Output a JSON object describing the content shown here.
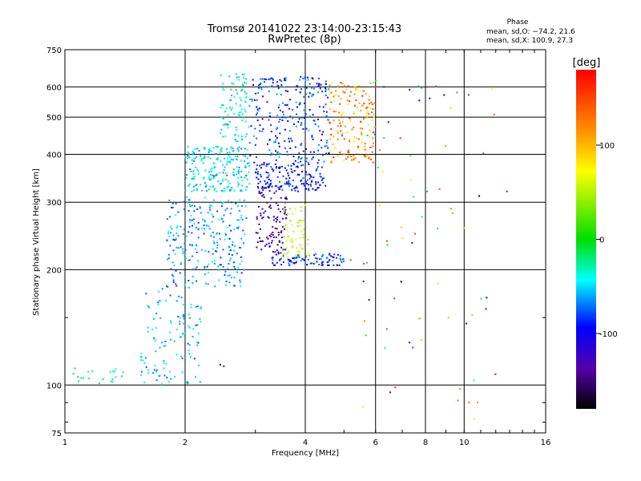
{
  "chart_data": {
    "type": "scatter",
    "title": "Tromsø 20141022 23:14:00-23:15:43",
    "subtitle": "RwPretec (8p)",
    "xlabel": "Frequency [MHz]",
    "ylabel": "Stationary phase Virtual Height [km]",
    "x_scale": "log",
    "y_scale": "log",
    "xlim": [
      1,
      16
    ],
    "ylim": [
      75,
      750
    ],
    "xticks": [
      1,
      2,
      4,
      8,
      16
    ],
    "x_tick_labels": [
      "1",
      "2",
      "4",
      "8",
      "16"
    ],
    "x_minor_ticks": [
      6,
      10
    ],
    "x_minor_tick_labels": [
      "6",
      "10"
    ],
    "yticks": [
      75,
      100,
      200,
      300,
      400,
      500,
      600,
      750
    ],
    "y_tick_labels": [
      "75",
      "100",
      "200",
      "300",
      "400",
      "500",
      "600",
      "750"
    ],
    "grid": true,
    "phase_stats": {
      "heading": "Phase",
      "line_o": "mean, sd,O: −74.2, 21.6",
      "line_x": "mean, sd,X: 100.9, 27.3"
    },
    "colorbar": {
      "label": "[deg]",
      "range": [
        -180,
        180
      ],
      "ticks": [
        100,
        0,
        -100
      ],
      "tick_labels": [
        "100",
        "0",
        "-100"
      ]
    },
    "clusters": [
      {
        "x": [
          1.0,
          1.4
        ],
        "y": [
          100,
          112
        ],
        "phase": [
          -40,
          -10
        ],
        "n": 18
      },
      {
        "x": [
          1.55,
          2.2
        ],
        "y": [
          100,
          180
        ],
        "phase": [
          -80,
          -30
        ],
        "n": 120
      },
      {
        "x": [
          1.8,
          2.85
        ],
        "y": [
          180,
          310
        ],
        "phase": [
          -85,
          -40
        ],
        "n": 260
      },
      {
        "x": [
          2.0,
          2.9
        ],
        "y": [
          320,
          420
        ],
        "phase": [
          -70,
          -20
        ],
        "n": 220
      },
      {
        "x": [
          2.45,
          2.9
        ],
        "y": [
          430,
          650
        ],
        "phase": [
          -60,
          -15
        ],
        "n": 90
      },
      {
        "x": [
          2.9,
          4.6
        ],
        "y": [
          380,
          640
        ],
        "phase": [
          -110,
          -55
        ],
        "n": 260
      },
      {
        "x": [
          3.0,
          4.5
        ],
        "y": [
          320,
          380
        ],
        "phase": [
          -115,
          -70
        ],
        "n": 160
      },
      {
        "x": [
          3.0,
          3.6
        ],
        "y": [
          220,
          330
        ],
        "phase": [
          -160,
          -110
        ],
        "n": 110
      },
      {
        "x": [
          3.5,
          4.1
        ],
        "y": [
          210,
          300
        ],
        "phase": [
          35,
          80
        ],
        "n": 60
      },
      {
        "x": [
          3.3,
          5.0
        ],
        "y": [
          205,
          220
        ],
        "phase": [
          -120,
          -60
        ],
        "n": 90
      },
      {
        "x": [
          4.6,
          6.0
        ],
        "y": [
          380,
          620
        ],
        "phase": [
          60,
          170
        ],
        "n": 170
      },
      {
        "x": [
          5.5,
          12.0
        ],
        "y": [
          80,
          650
        ],
        "phase": [
          -180,
          180
        ],
        "n": 70
      }
    ],
    "series": [
      {
        "name": "",
        "x": [
          1.05,
          1.15,
          1.3,
          2.45,
          2.5,
          3.8,
          4.6,
          5.2,
          6.3,
          7.3,
          8.2,
          9.6,
          10.8,
          12.8
        ],
        "y": [
          107,
          104,
          108,
          113,
          112,
          210,
          210,
          212,
          600,
          590,
          560,
          580,
          90,
          320
        ],
        "phase": [
          -20,
          -15,
          -30,
          -150,
          -145,
          -70,
          -40,
          150,
          -90,
          -110,
          -120,
          -60,
          120,
          -80
        ]
      }
    ]
  }
}
